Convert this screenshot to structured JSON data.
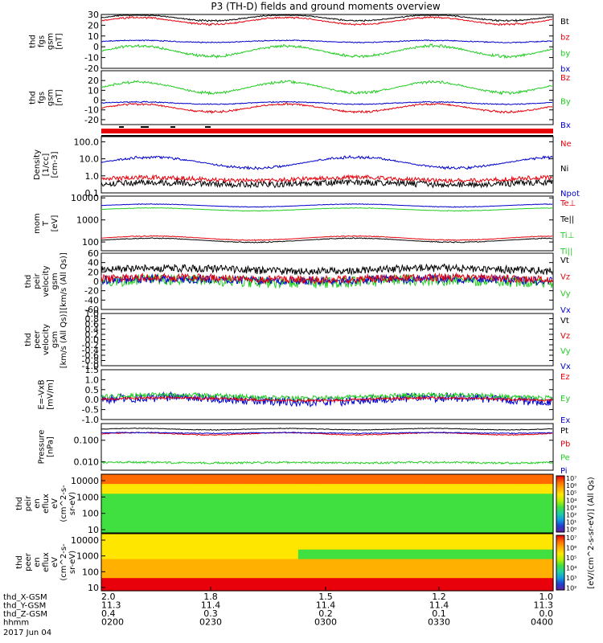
{
  "title": "P3 (TH-D) fields and ground moments overview",
  "footer": {
    "rows": [
      {
        "label": "thd_X-GSM",
        "values": [
          "11.3",
          "11.4",
          "11.4",
          "11.4",
          "11.3"
        ]
      },
      {
        "label": "thd_Y-GSM",
        "values": [
          "11.3",
          "11.4",
          "11.4",
          "11.4",
          "11.3"
        ]
      },
      {
        "label": "thd_Z-GSM",
        "values": [
          "0.4",
          "0.3",
          "0.2",
          "0.1",
          "0.0"
        ]
      },
      {
        "label": "hhmm",
        "values": [
          "0200",
          "0230",
          "0300",
          "0330",
          "0400"
        ]
      }
    ],
    "date": "2017 Jun 04",
    "top_ticks": [
      "2.0",
      "1.8",
      "1.5",
      "1.2",
      "1.0"
    ]
  },
  "chart_data": [
    {
      "id": "fgs_gsm_top",
      "type": "line",
      "ylabel": [
        "thd",
        "fgs",
        "gsm",
        "[nT]"
      ],
      "ylim": [
        -20,
        30
      ],
      "yticks": [
        "30",
        "20",
        "10",
        "0",
        "-10",
        "-20"
      ],
      "legend": [
        {
          "name": "Bt",
          "color": "#000000"
        },
        {
          "name": "bz",
          "color": "#e8000b"
        },
        {
          "name": "by",
          "color": "#22cc22"
        },
        {
          "name": "bx",
          "color": "#0000cc"
        }
      ],
      "series": [
        {
          "name": "Bt",
          "color": "#000000",
          "base": 27,
          "amp": 3.5,
          "noise": 0.4,
          "period": 55
        },
        {
          "name": "bz",
          "color": "#e8000b",
          "base": 24,
          "amp": 4,
          "noise": 0.4,
          "period": 55
        },
        {
          "name": "by",
          "color": "#22cc22",
          "base": -4,
          "amp": 6,
          "noise": 0.5,
          "period": 55
        },
        {
          "name": "bx",
          "color": "#0000cc",
          "base": 5,
          "amp": 1.2,
          "noise": 0.4,
          "period": 55
        }
      ]
    },
    {
      "id": "fgs_gsm_bottom",
      "type": "line",
      "ylabel": [
        "thd",
        "fgs",
        "gsm",
        "[nT]"
      ],
      "ylim": [
        -25,
        30
      ],
      "yticks": [
        "20",
        "10",
        "0",
        "-10",
        "-20"
      ],
      "legend": [
        {
          "name": "Bz",
          "color": "#e8000b"
        },
        {
          "name": "By",
          "color": "#22cc22"
        },
        {
          "name": "Bx",
          "color": "#0000cc"
        }
      ],
      "series": [
        {
          "name": "By",
          "color": "#22cc22",
          "base": 13,
          "amp": 7,
          "noise": 0.5,
          "period": 55
        },
        {
          "name": "Bz",
          "color": "#e8000b",
          "base": -8,
          "amp": 5,
          "noise": 0.5,
          "period": 55
        },
        {
          "name": "Bx",
          "color": "#0000cc",
          "base": -3,
          "amp": 1.5,
          "noise": 0.4,
          "period": 55
        }
      ]
    },
    {
      "id": "density",
      "type": "line",
      "yscale": "log",
      "ylabel": [
        "Density",
        "[1/cc]",
        "[cm-3]"
      ],
      "ylim": [
        0.1,
        200
      ],
      "yticks": [
        "100.0",
        "10.0",
        "1.0",
        "0.1"
      ],
      "ytick_values": [
        100,
        10,
        1,
        0.1
      ],
      "legend": [
        {
          "name": "Ne",
          "color": "#e8000b"
        },
        {
          "name": "Ni",
          "color": "#000000"
        },
        {
          "name": "Npot",
          "color": "#0000cc"
        }
      ],
      "series": [
        {
          "name": "Npot",
          "color": "#0000cc",
          "base": 6,
          "amp": 2.5,
          "noise": 0.35,
          "period": 40,
          "log": true
        },
        {
          "name": "Ne",
          "color": "#e8000b",
          "base": 0.65,
          "amp": 1.3,
          "noise": 0.2,
          "period": 40,
          "log": true
        },
        {
          "name": "Ni",
          "color": "#000000",
          "base": 0.35,
          "amp": 1.2,
          "noise": 0.15,
          "period": 40,
          "log": true
        }
      ]
    },
    {
      "id": "temperature",
      "type": "line",
      "yscale": "log",
      "ylabel": [
        "mom",
        "T",
        "[eV]"
      ],
      "ylim": [
        40,
        12000
      ],
      "yticks": [
        "10000",
        "1000",
        "100"
      ],
      "ytick_values": [
        10000,
        1000,
        100
      ],
      "legend": [
        {
          "name": "Te⊥",
          "color": "#e8000b"
        },
        {
          "name": "Te||",
          "color": "#000000"
        },
        {
          "name": "Ti⊥",
          "color": "#22cc22"
        },
        {
          "name": "Ti||",
          "color": "#22cc22"
        }
      ],
      "series": [
        {
          "name": "Ti⊥",
          "color": "#22cc22",
          "base": 3000,
          "amp": 1.2,
          "noise": 0.1,
          "period": 40,
          "log": true
        },
        {
          "name": "Ti||",
          "color": "#0000cc",
          "base": 4500,
          "amp": 1.2,
          "noise": 0.1,
          "period": 40,
          "log": true
        },
        {
          "name": "Te⊥",
          "color": "#e8000b",
          "base": 150,
          "amp": 1.3,
          "noise": 0.12,
          "period": 40,
          "log": true
        },
        {
          "name": "Te||",
          "color": "#000000",
          "base": 120,
          "amp": 1.3,
          "noise": 0.12,
          "period": 40,
          "log": true
        }
      ]
    },
    {
      "id": "peir_velocity",
      "type": "line",
      "ylabel": [
        "thd",
        "peir",
        "velocity",
        "gsm",
        "[km/s (All Qs)]"
      ],
      "ylim": [
        -60,
        60
      ],
      "yticks": [
        "60",
        "40",
        "20",
        "0",
        "-20",
        "-40",
        "-60"
      ],
      "legend": [
        {
          "name": "Vt",
          "color": "#000000"
        },
        {
          "name": "Vz",
          "color": "#e8000b"
        },
        {
          "name": "Vy",
          "color": "#22cc22"
        },
        {
          "name": "Vx",
          "color": "#0000cc"
        }
      ],
      "series": [
        {
          "name": "Vt",
          "color": "#000000",
          "base": 25,
          "amp": 4,
          "noise": 8,
          "period": 30
        },
        {
          "name": "Vy",
          "color": "#22cc22",
          "base": 0,
          "amp": 4,
          "noise": 12,
          "period": 30
        },
        {
          "name": "Vx",
          "color": "#0000cc",
          "base": 3,
          "amp": 3,
          "noise": 9,
          "period": 30
        },
        {
          "name": "Vz",
          "color": "#e8000b",
          "base": 6,
          "amp": 3,
          "noise": 8,
          "period": 30
        }
      ]
    },
    {
      "id": "peer_velocity",
      "type": "line",
      "ylabel": [
        "thd",
        "peer",
        "velocity",
        "gsm",
        "[km/s (All Qs)]"
      ],
      "ylim": [
        -1,
        1
      ],
      "yticks": [
        "1.0",
        "0.8",
        "0.6",
        "0.4",
        "0.2",
        "0.0",
        "-0.2",
        "-0.4",
        "-0.6",
        "-0.8",
        "-1.0"
      ],
      "legend": [
        {
          "name": "Vt",
          "color": "#000000"
        },
        {
          "name": "Vz",
          "color": "#e8000b"
        },
        {
          "name": "Vy",
          "color": "#22cc22"
        },
        {
          "name": "Vx",
          "color": "#0000cc"
        }
      ],
      "series": []
    },
    {
      "id": "efield",
      "type": "line",
      "ylabel": [
        "E=-VxB",
        "[mV/m]"
      ],
      "ylim": [
        -1.0,
        1.5
      ],
      "yticks": [
        "1.5",
        "1.0",
        "0.5",
        "0.0",
        "-0.5",
        "-1.0"
      ],
      "legend": [
        {
          "name": "Ez",
          "color": "#e8000b"
        },
        {
          "name": "Ey",
          "color": "#22cc22"
        },
        {
          "name": "Ex",
          "color": "#0000cc"
        }
      ],
      "series": [
        {
          "name": "Ex",
          "color": "#0000cc",
          "base": 0,
          "amp": 0.15,
          "noise": 0.22,
          "period": 30
        },
        {
          "name": "Ey",
          "color": "#22cc22",
          "base": 0.15,
          "amp": 0.1,
          "noise": 0.12,
          "period": 30
        },
        {
          "name": "Ez",
          "color": "#e8000b",
          "base": 0.02,
          "amp": 0.08,
          "noise": 0.06,
          "period": 30
        }
      ]
    },
    {
      "id": "pressure",
      "type": "line",
      "yscale": "log",
      "ylabel": [
        "Pressure",
        "[nPa]"
      ],
      "ylim": [
        0.004,
        0.6
      ],
      "yticks": [
        "0.100",
        "0.010"
      ],
      "ytick_values": [
        0.1,
        0.01
      ],
      "legend": [
        {
          "name": "Pt",
          "color": "#000000"
        },
        {
          "name": "Pb",
          "color": "#e8000b"
        },
        {
          "name": "Pe",
          "color": "#22cc22"
        },
        {
          "name": "Pi",
          "color": "#0000cc"
        }
      ],
      "series": [
        {
          "name": "Pt",
          "color": "#000000",
          "base": 0.33,
          "amp": 1.1,
          "noise": 0.01,
          "period": 55,
          "log": true
        },
        {
          "name": "Pb",
          "color": "#e8000b",
          "base": 0.2,
          "amp": 1.15,
          "noise": 0.01,
          "period": 55,
          "log": true
        },
        {
          "name": "Pi",
          "color": "#0000cc",
          "base": 0.22,
          "amp": 1.05,
          "noise": 0.01,
          "period": 55,
          "log": true
        },
        {
          "name": "Pe",
          "color": "#22cc22",
          "base": 0.009,
          "amp": 1.05,
          "noise": 0.001,
          "period": 55,
          "log": true
        }
      ]
    },
    {
      "id": "peir_en_eflux",
      "type": "heatmap",
      "ylabel": [
        "thd",
        "peir",
        "en",
        "eflux",
        "eV",
        "(cm^2-s-",
        "sr-eV)"
      ],
      "yticks": [
        "10000",
        "1000",
        "100",
        "10"
      ],
      "zscale": "log"
    },
    {
      "id": "peer_en_eflux",
      "type": "heatmap",
      "ylabel": [
        "thd",
        "peer",
        "en",
        "eflux",
        "eV",
        "(cm^2-s-",
        "sr-eV)"
      ],
      "yticks": [
        "10000",
        "1000",
        "100",
        "10"
      ],
      "zscale": "log"
    }
  ],
  "colorbar": {
    "label": "[eV/(cm^2-s-sr-eV)] (All Qs)",
    "ticks_top": [
      "10⁷",
      "10⁶",
      "10⁵",
      "10⁴",
      "10³",
      "10²",
      "10¹",
      "10⁰"
    ],
    "ticks_bottom": [
      "10⁷",
      "10⁶",
      "10⁵",
      "10⁴",
      "10³",
      "10²"
    ]
  }
}
